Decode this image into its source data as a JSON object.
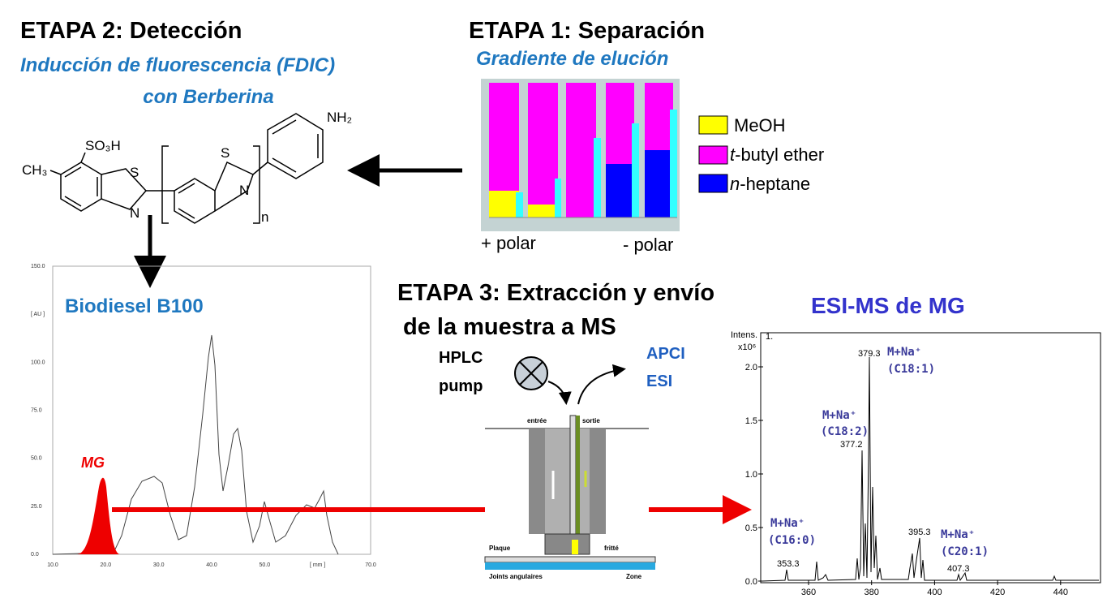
{
  "stage2": {
    "title": "ETAPA 2: Detección",
    "subtitle_lines": [
      "Inducción de fluorescencia (FDIC)",
      "con Berberina"
    ],
    "structure": {
      "so3h": "SO₃H",
      "ch3": "CH₃",
      "s1": "S",
      "n1": "N",
      "s2": "S",
      "n2": "N",
      "nh2": "NH₂",
      "repeat": "n"
    }
  },
  "stage1": {
    "title": "ETAPA 1: Separación",
    "subtitle": "Gradiente de elución",
    "legend": [
      {
        "label": "MeOH"
      },
      {
        "italic": "t",
        "label": "-butyl ether"
      },
      {
        "italic": "n",
        "label": "-heptane"
      }
    ],
    "polarity": [
      "+ polar",
      "- polar"
    ]
  },
  "stage3": {
    "title_lines": [
      "ETAPA 3: Extracción y envío",
      "de la muestra a MS"
    ],
    "pump": [
      "HPLC",
      "pump"
    ],
    "sources": [
      "APCI",
      "ESI"
    ],
    "probe_labels": {
      "inlet": "entrée",
      "outlet": "sortie",
      "plate": "Plaque",
      "frit": "fritté",
      "joints": "Joints angulaires",
      "zone": "Zone"
    }
  },
  "chromatogram": {
    "title": "Biodiesel B100",
    "peak_label": "MG",
    "y_labels": [
      "0.0",
      "25.0",
      "50.0",
      "75.0",
      "100.0",
      "[ AU ]",
      "150.0"
    ],
    "x_labels": [
      "10.0",
      "20.0",
      "30.0",
      "40.0",
      "50.0",
      "[ mm ]",
      "70.0"
    ]
  },
  "ms": {
    "title": "ESI-MS de MG",
    "y_label": "Intens.",
    "y_scale": "x10⁶",
    "trace": "1.",
    "y_labels": [
      "0.0",
      "0.5",
      "1.0",
      "1.5",
      "2.0"
    ],
    "x_labels": [
      "360",
      "380",
      "400",
      "420",
      "440"
    ],
    "peak_labels": [
      "353.3",
      "377.2",
      "379.3",
      "395.3",
      "407.3"
    ],
    "annotations": [
      [
        "M+Na⁺",
        "(C18:1)"
      ],
      [
        "M+Na⁺",
        "(C18:2)"
      ],
      [
        "M+Na⁺",
        "(C16:0)"
      ],
      [
        "M+Na⁺",
        "(C20:1)"
      ]
    ]
  }
}
